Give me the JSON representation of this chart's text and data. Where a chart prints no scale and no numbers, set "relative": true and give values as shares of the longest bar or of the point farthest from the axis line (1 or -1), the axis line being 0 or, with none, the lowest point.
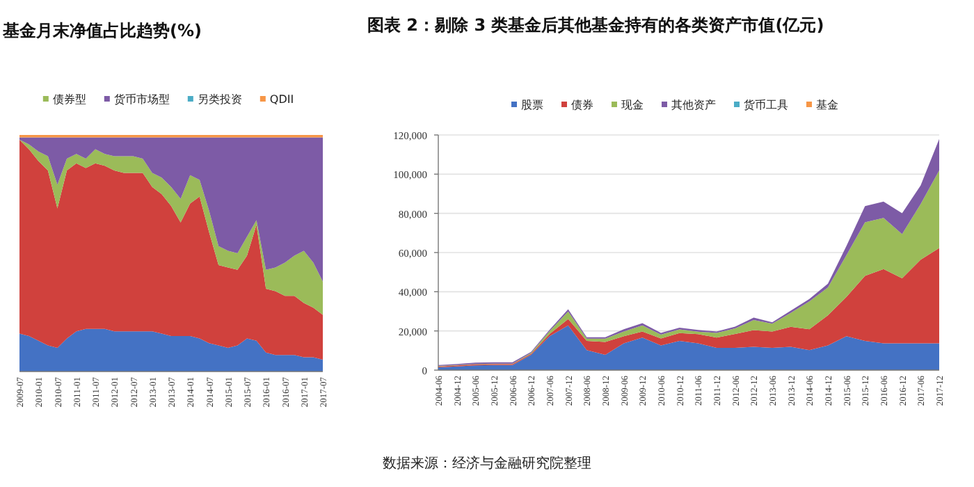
{
  "chart_data": [
    {
      "type": "area",
      "title": "基金月末净值占比趋势(%)",
      "stacked": true,
      "relative": true,
      "legend": "top",
      "categories": [
        "2009-07",
        null,
        "2010-01",
        null,
        "2010-07",
        null,
        "2011-01",
        null,
        "2011-07",
        null,
        "2012-01",
        null,
        "2012-07",
        null,
        "2013-01",
        null,
        "2013-07",
        null,
        "2014-01",
        null,
        "2014-07",
        null,
        "2015-01",
        null,
        "2015-07",
        null,
        "2016-01",
        null,
        "2016-07",
        null,
        "2017-01",
        null,
        "2017-07"
      ],
      "series": [
        {
          "color": "#4472c4",
          "values": [
            0.16,
            0.15,
            0.13,
            0.11,
            0.1,
            0.14,
            0.17,
            0.18,
            0.18,
            0.18,
            0.17,
            0.17,
            0.17,
            0.17,
            0.17,
            0.16,
            0.15,
            0.15,
            0.15,
            0.14,
            0.12,
            0.11,
            0.1,
            0.11,
            0.14,
            0.13,
            0.08,
            0.07,
            0.07,
            0.07,
            0.06,
            0.06,
            0.05
          ]
        },
        {
          "color": "#d0413d",
          "values": [
            0.82,
            0.79,
            0.76,
            0.74,
            0.59,
            0.71,
            0.71,
            0.68,
            0.7,
            0.69,
            0.68,
            0.67,
            0.67,
            0.67,
            0.61,
            0.59,
            0.55,
            0.48,
            0.56,
            0.6,
            0.47,
            0.34,
            0.34,
            0.32,
            0.35,
            0.49,
            0.27,
            0.27,
            0.25,
            0.25,
            0.23,
            0.21,
            0.19
          ]
        },
        {
          "name": "债券型",
          "color": "#9bbb59",
          "values": [
            0.0,
            0.02,
            0.04,
            0.06,
            0.1,
            0.05,
            0.04,
            0.04,
            0.06,
            0.05,
            0.06,
            0.07,
            0.07,
            0.06,
            0.06,
            0.07,
            0.08,
            0.1,
            0.12,
            0.07,
            0.09,
            0.08,
            0.07,
            0.07,
            0.08,
            0.02,
            0.08,
            0.1,
            0.14,
            0.17,
            0.22,
            0.19,
            0.14
          ]
        },
        {
          "name": "货币市场型",
          "color": "#7d5ba6",
          "values": [
            0.01,
            0.03,
            0.06,
            0.08,
            0.2,
            0.09,
            0.07,
            0.09,
            0.05,
            0.07,
            0.08,
            0.08,
            0.08,
            0.09,
            0.15,
            0.17,
            0.21,
            0.26,
            0.16,
            0.18,
            0.31,
            0.46,
            0.48,
            0.49,
            0.42,
            0.35,
            0.56,
            0.55,
            0.53,
            0.5,
            0.48,
            0.53,
            0.61
          ]
        },
        {
          "name": "另类投资",
          "color": "#4bacc6",
          "values": [
            null,
            null,
            null,
            null,
            null,
            null,
            null,
            null,
            null,
            null,
            null,
            null,
            null,
            null,
            null,
            null,
            null,
            null,
            null,
            null,
            null,
            null,
            null,
            null,
            null,
            null,
            null,
            null,
            null,
            null,
            null,
            null,
            null
          ]
        },
        {
          "name": "QDII",
          "color": "#f79646",
          "values": [
            0.01,
            0.01,
            0.01,
            0.01,
            0.01,
            0.01,
            0.01,
            0.01,
            0.01,
            0.01,
            0.01,
            0.01,
            0.01,
            0.01,
            0.01,
            0.01,
            0.01,
            0.01,
            0.01,
            0.01,
            0.01,
            0.01,
            0.01,
            0.01,
            0.01,
            0.01,
            0.01,
            0.01,
            0.01,
            0.01,
            0.01,
            0.01,
            0.01
          ]
        }
      ],
      "annotations": [
        "数据来源：经济与金融研究院整理"
      ]
    },
    {
      "type": "area",
      "title": "图表 2：剔除 3 类基金后其他基金持有的各类资产市值(亿元)",
      "stacked": true,
      "legend": "top",
      "grid": "y",
      "categories": [
        "2004-06",
        "2004-12",
        "2005-06",
        "2005-12",
        "2006-06",
        "2006-12",
        "2007-06",
        "2007-12",
        "2008-06",
        "2008-12",
        "2009-06",
        "2009-12",
        "2010-06",
        "2010-12",
        "2011-06",
        "2011-12",
        "2012-06",
        "2012-12",
        "2013-06",
        "2013-12",
        "2014-06",
        "2014-12",
        "2015-06",
        "2015-12",
        "2016-06",
        "2016-12",
        "2017-06",
        "2017-12"
      ],
      "ylim": [
        0,
        120000
      ],
      "yticks": [
        0,
        {
          "value": 20000,
          "label": "20,000"
        },
        {
          "value": 40000,
          "label": "40,000"
        },
        {
          "value": 60000,
          "label": "60,000"
        },
        {
          "value": 80000,
          "label": "80,000"
        },
        {
          "value": 100000,
          "label": "100,000"
        },
        {
          "value": 120000,
          "label": "120,000"
        }
      ],
      "series": [
        {
          "name": "股票",
          "color": "#4472c4",
          "values": [
            1400,
            1900,
            2400,
            2600,
            2600,
            7800,
            17300,
            22800,
            10200,
            7800,
            13700,
            16600,
            12600,
            14900,
            13700,
            11400,
            11400,
            11900,
            11400,
            11900,
            10200,
            12600,
            17300,
            14900,
            13700,
            13700,
            13700,
            13700
          ]
        },
        {
          "name": "债券",
          "color": "#d0413d",
          "values": [
            500,
            500,
            500,
            500,
            500,
            500,
            1200,
            3300,
            4700,
            6600,
            3600,
            3100,
            3600,
            4000,
            4700,
            5200,
            7100,
            8500,
            8300,
            10200,
            10700,
            15400,
            20100,
            33200,
            37900,
            33200,
            42700,
            48600
          ]
        },
        {
          "name": "现金",
          "color": "#9bbb59",
          "values": [
            200,
            200,
            200,
            200,
            200,
            500,
            1400,
            3800,
            1200,
            1700,
            2400,
            3100,
            1900,
            1900,
            1200,
            2400,
            2800,
            5200,
            4000,
            7100,
            14200,
            14200,
            21300,
            27300,
            26100,
            22500,
            28400,
            39600
          ]
        },
        {
          "name": "其他资产",
          "color": "#7d5ba6",
          "values": [
            500,
            500,
            700,
            700,
            700,
            500,
            700,
            1200,
            700,
            700,
            1200,
            1200,
            900,
            900,
            900,
            700,
            900,
            1200,
            700,
            1200,
            1200,
            1900,
            4700,
            8300,
            8300,
            10700,
            9500,
            16100
          ]
        },
        {
          "name": "货币工具",
          "color": "#4bacc6",
          "values": [
            null,
            null,
            null,
            null,
            null,
            null,
            null,
            null,
            null,
            null,
            null,
            null,
            null,
            null,
            null,
            null,
            null,
            null,
            null,
            null,
            null,
            null,
            null,
            null,
            null,
            null,
            null,
            null
          ]
        },
        {
          "name": "基金",
          "color": "#f79646",
          "values": [
            null,
            null,
            null,
            null,
            null,
            null,
            null,
            null,
            null,
            null,
            null,
            null,
            null,
            null,
            null,
            null,
            null,
            null,
            null,
            null,
            null,
            null,
            null,
            null,
            null,
            null,
            null,
            null
          ]
        }
      ]
    }
  ]
}
